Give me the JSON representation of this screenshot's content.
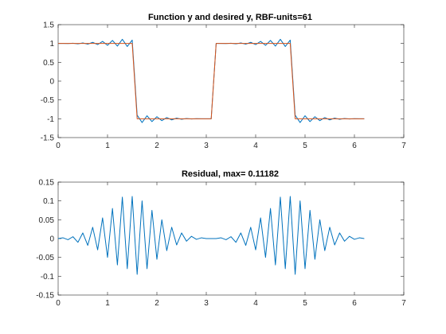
{
  "chart_data": [
    {
      "type": "line",
      "title": "Function y and desired y, RBF-units=61",
      "xlabel": "",
      "ylabel": "",
      "xlim": [
        0,
        7
      ],
      "ylim": [
        -1.5,
        1.5
      ],
      "xticks": [
        0,
        1,
        2,
        3,
        4,
        5,
        6,
        7
      ],
      "yticks": [
        -1.5,
        -1,
        -0.5,
        0,
        0.5,
        1,
        1.5
      ],
      "xtick_labels": [
        "0",
        "1",
        "2",
        "3",
        "4",
        "5",
        "6",
        "7"
      ],
      "ytick_labels": [
        "-1.5",
        "-1",
        "-0.5",
        "0",
        "0.5",
        "1",
        "1.5"
      ],
      "grid": false,
      "colors": {
        "approximation": "#0072BD",
        "desired": "#D95319"
      },
      "x": {
        "start": 0,
        "step": 0.1,
        "count": 63
      },
      "series": [
        {
          "key": "approximation",
          "values": [
            1.0,
            1.002,
            0.997,
            1.005,
            0.99,
            1.015,
            0.982,
            1.03,
            0.97,
            1.055,
            0.95,
            1.08,
            0.93,
            1.11,
            0.92,
            1.09,
            -0.905,
            -1.1,
            -0.92,
            -1.075,
            -0.945,
            -1.05,
            -0.968,
            -1.03,
            -0.983,
            -1.015,
            -0.993,
            -1.006,
            -0.998,
            -1.002,
            -1.0,
            -1.0,
            1.0,
            1.002,
            0.997,
            1.005,
            0.99,
            1.015,
            0.982,
            1.03,
            0.97,
            1.055,
            0.95,
            1.08,
            0.93,
            1.11,
            0.92,
            1.09,
            -0.905,
            -1.1,
            -0.92,
            -1.075,
            -0.945,
            -1.05,
            -0.968,
            -1.03,
            -0.983,
            -1.015,
            -0.993,
            -1.006,
            -0.998,
            -1.002,
            -1.0
          ]
        },
        {
          "key": "desired",
          "values": [
            1,
            1,
            1,
            1,
            1,
            1,
            1,
            1,
            1,
            1,
            1,
            1,
            1,
            1,
            1,
            1,
            -1,
            -1,
            -1,
            -1,
            -1,
            -1,
            -1,
            -1,
            -1,
            -1,
            -1,
            -1,
            -1,
            -1,
            -1,
            -1,
            1,
            1,
            1,
            1,
            1,
            1,
            1,
            1,
            1,
            1,
            1,
            1,
            1,
            1,
            1,
            1,
            -1,
            -1,
            -1,
            -1,
            -1,
            -1,
            -1,
            -1,
            -1,
            -1,
            -1,
            -1,
            -1,
            -1,
            -1
          ]
        }
      ]
    },
    {
      "type": "line",
      "title": "Residual, max= 0.11182",
      "xlabel": "",
      "ylabel": "",
      "xlim": [
        0,
        7
      ],
      "ylim": [
        -0.15,
        0.15
      ],
      "xticks": [
        0,
        1,
        2,
        3,
        4,
        5,
        6,
        7
      ],
      "yticks": [
        -0.15,
        -0.1,
        -0.05,
        0,
        0.05,
        0.1,
        0.15
      ],
      "xtick_labels": [
        "0",
        "1",
        "2",
        "3",
        "4",
        "5",
        "6",
        "7"
      ],
      "ytick_labels": [
        "-0.15",
        "-0.1",
        "-0.05",
        "0",
        "0.05",
        "0.1",
        "0.15"
      ],
      "grid": false,
      "colors": {
        "residual": "#0072BD"
      },
      "x": {
        "start": 0,
        "step": 0.1,
        "count": 63
      },
      "series": [
        {
          "key": "residual",
          "values": [
            0.0,
            0.002,
            -0.003,
            0.005,
            -0.01,
            0.015,
            -0.018,
            0.03,
            -0.03,
            0.055,
            -0.05,
            0.08,
            -0.07,
            0.11,
            -0.08,
            0.112,
            -0.095,
            0.1,
            -0.08,
            0.075,
            -0.055,
            0.05,
            -0.032,
            0.03,
            -0.017,
            0.015,
            -0.007,
            0.006,
            -0.002,
            0.002,
            0.0,
            0.0,
            0.0,
            0.002,
            -0.003,
            0.005,
            -0.01,
            0.015,
            -0.018,
            0.03,
            -0.03,
            0.055,
            -0.05,
            0.08,
            -0.07,
            0.11,
            -0.08,
            0.112,
            -0.095,
            0.1,
            -0.08,
            0.075,
            -0.055,
            0.05,
            -0.032,
            0.03,
            -0.017,
            0.015,
            -0.007,
            0.006,
            -0.002,
            0.002,
            0.0
          ]
        }
      ]
    }
  ]
}
